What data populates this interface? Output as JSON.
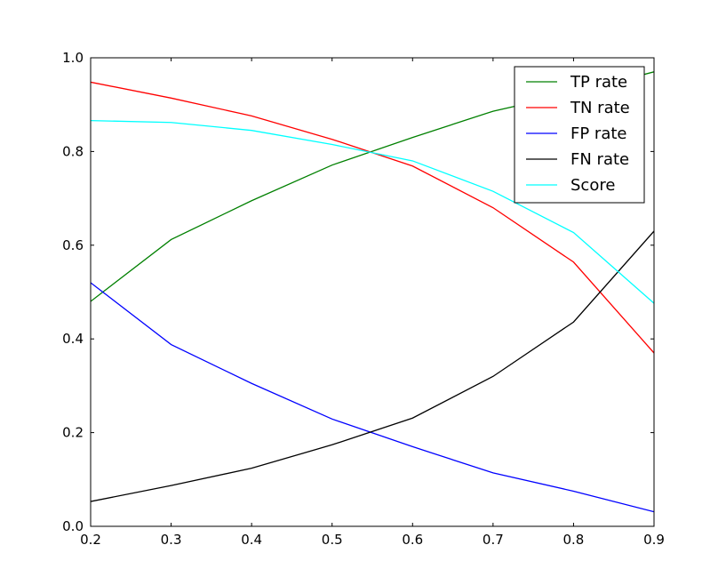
{
  "chart_data": {
    "type": "line",
    "title": "",
    "xlabel": "",
    "ylabel": "",
    "x": [
      0.2,
      0.3,
      0.4,
      0.5,
      0.6,
      0.7,
      0.8,
      0.9
    ],
    "xlim": [
      0.2,
      0.9
    ],
    "ylim": [
      0.0,
      1.0
    ],
    "xticks": [
      "0.2",
      "0.3",
      "0.4",
      "0.5",
      "0.6",
      "0.7",
      "0.8",
      "0.9"
    ],
    "yticks": [
      "0.0",
      "0.2",
      "0.4",
      "0.6",
      "0.8",
      "1.0"
    ],
    "grid": false,
    "legend_position": "top-right",
    "series": [
      {
        "name": "TP rate",
        "color": "#008000",
        "values": [
          0.48,
          0.612,
          0.695,
          0.771,
          0.83,
          0.886,
          0.925,
          0.97
        ]
      },
      {
        "name": "TN rate",
        "color": "#ff0000",
        "values": [
          0.948,
          0.914,
          0.876,
          0.826,
          0.769,
          0.68,
          0.564,
          0.37
        ]
      },
      {
        "name": "FP rate",
        "color": "#0000ff",
        "values": [
          0.52,
          0.388,
          0.305,
          0.229,
          0.17,
          0.114,
          0.075,
          0.031
        ]
      },
      {
        "name": "FN rate",
        "color": "#000000",
        "values": [
          0.053,
          0.087,
          0.124,
          0.174,
          0.231,
          0.32,
          0.436,
          0.63
        ]
      },
      {
        "name": "Score",
        "color": "#00ffff",
        "values": [
          0.866,
          0.862,
          0.845,
          0.815,
          0.78,
          0.715,
          0.627,
          0.476
        ]
      }
    ]
  }
}
